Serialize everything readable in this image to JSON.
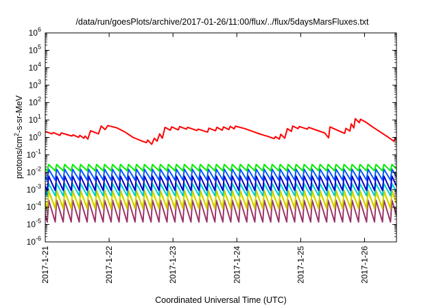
{
  "chart_data": {
    "type": "line",
    "title": "/data/run/goesPlots/archive/2017-01-26/11:00/flux/../flux/5daysMarsFluxes.txt",
    "xlabel": "Coordinated Universal Time (UTC)",
    "ylabel_parts": {
      "pre": "protons/cm",
      "sup": "2",
      "post": "-s-sr-MeV"
    },
    "y_scale": "log",
    "ylim_exp": [
      -6,
      6
    ],
    "ytick_exps": [
      "-6",
      "-5",
      "-4",
      "-3",
      "-2",
      "-1",
      "0",
      "1",
      "2",
      "3",
      "4",
      "5",
      "6"
    ],
    "ytick_base": "10",
    "x_unit": "day",
    "xlim": [
      "2017-01-21T00:00",
      "2017-01-26T12:00"
    ],
    "xticks": [
      "2017-1-21",
      "2017-1-22",
      "2017-1-23",
      "2017-1-24",
      "2017-1-25",
      "2017-1-26"
    ],
    "grid": false,
    "legend": "none",
    "main_series": {
      "color": "#ff0000",
      "points": [
        [
          "2017-01-21T00:00",
          2.2
        ],
        [
          "2017-01-21T02:30",
          1.6
        ],
        [
          "2017-01-21T03:00",
          1.9
        ],
        [
          "2017-01-21T05:30",
          1.3
        ],
        [
          "2017-01-21T06:00",
          1.8
        ],
        [
          "2017-01-21T10:00",
          1.2
        ],
        [
          "2017-01-21T10:30",
          1.4
        ],
        [
          "2017-01-21T12:30",
          1.0
        ],
        [
          "2017-01-21T13:00",
          1.3
        ],
        [
          "2017-01-21T14:30",
          0.9
        ],
        [
          "2017-01-21T15:00",
          1.2
        ],
        [
          "2017-01-21T16:00",
          0.8
        ],
        [
          "2017-01-21T17:00",
          2.4
        ],
        [
          "2017-01-21T20:00",
          1.6
        ],
        [
          "2017-01-21T21:00",
          4.5
        ],
        [
          "2017-01-21T22:30",
          2.8
        ],
        [
          "2017-01-21T23:30",
          4.8
        ],
        [
          "2017-01-22T03:00",
          3.5
        ],
        [
          "2017-01-22T06:00",
          2.0
        ],
        [
          "2017-01-22T09:00",
          1.0
        ],
        [
          "2017-01-22T12:00",
          0.65
        ],
        [
          "2017-01-22T14:00",
          0.5
        ],
        [
          "2017-01-22T14:30",
          0.7
        ],
        [
          "2017-01-22T16:00",
          0.4
        ],
        [
          "2017-01-22T17:00",
          0.9
        ],
        [
          "2017-01-22T18:00",
          0.6
        ],
        [
          "2017-01-22T19:00",
          1.6
        ],
        [
          "2017-01-22T20:00",
          0.9
        ],
        [
          "2017-01-22T21:00",
          3.8
        ],
        [
          "2017-01-22T23:00",
          2.6
        ],
        [
          "2017-01-22T23:30",
          4.0
        ],
        [
          "2017-01-23T02:00",
          2.7
        ],
        [
          "2017-01-23T02:30",
          4.2
        ],
        [
          "2017-01-23T05:00",
          3.0
        ],
        [
          "2017-01-23T05:30",
          3.8
        ],
        [
          "2017-01-23T09:00",
          2.5
        ],
        [
          "2017-01-23T09:30",
          3.0
        ],
        [
          "2017-01-23T13:00",
          2.0
        ],
        [
          "2017-01-23T13:30",
          3.4
        ],
        [
          "2017-01-23T16:00",
          2.4
        ],
        [
          "2017-01-23T16:30",
          3.8
        ],
        [
          "2017-01-23T18:30",
          2.6
        ],
        [
          "2017-01-23T19:00",
          4.0
        ],
        [
          "2017-01-23T21:00",
          2.8
        ],
        [
          "2017-01-23T21:30",
          4.3
        ],
        [
          "2017-01-23T23:00",
          3.1
        ],
        [
          "2017-01-23T23:30",
          4.4
        ],
        [
          "2017-01-24T03:00",
          3.2
        ],
        [
          "2017-01-24T06:00",
          2.2
        ],
        [
          "2017-01-24T09:00",
          1.5
        ],
        [
          "2017-01-24T12:00",
          1.1
        ],
        [
          "2017-01-24T14:00",
          0.85
        ],
        [
          "2017-01-24T14:30",
          1.1
        ],
        [
          "2017-01-24T16:00",
          0.8
        ],
        [
          "2017-01-24T16:30",
          1.5
        ],
        [
          "2017-01-24T18:00",
          0.9
        ],
        [
          "2017-01-24T19:00",
          3.2
        ],
        [
          "2017-01-24T20:30",
          2.2
        ],
        [
          "2017-01-24T21:00",
          4.5
        ],
        [
          "2017-01-24T23:00",
          3.2
        ],
        [
          "2017-01-24T23:30",
          4.2
        ],
        [
          "2017-01-25T02:30",
          3.0
        ],
        [
          "2017-01-25T03:00",
          3.8
        ],
        [
          "2017-01-25T06:00",
          2.6
        ],
        [
          "2017-01-25T09:00",
          1.8
        ],
        [
          "2017-01-25T10:30",
          0.95
        ],
        [
          "2017-01-25T11:00",
          4.0
        ],
        [
          "2017-01-25T14:00",
          2.5
        ],
        [
          "2017-01-25T16:30",
          1.7
        ],
        [
          "2017-01-25T17:00",
          3.3
        ],
        [
          "2017-01-25T18:30",
          2.3
        ],
        [
          "2017-01-25T19:00",
          6.0
        ],
        [
          "2017-01-25T20:00",
          3.5
        ],
        [
          "2017-01-25T20:30",
          12
        ],
        [
          "2017-01-25T22:00",
          7.0
        ],
        [
          "2017-01-25T22:30",
          11
        ],
        [
          "2017-01-26T00:30",
          7.5
        ],
        [
          "2017-01-26T03:00",
          4.0
        ],
        [
          "2017-01-26T06:00",
          2.0
        ],
        [
          "2017-01-26T09:00",
          1.0
        ],
        [
          "2017-01-26T11:00",
          0.6
        ],
        [
          "2017-01-26T11:30",
          0.9
        ],
        [
          "2017-01-26T12:00",
          0.8
        ]
      ]
    },
    "sawtooth_series": [
      {
        "color": "#00ee00",
        "period_hours": 3,
        "peak": 0.028,
        "trough": 0.012
      },
      {
        "color": "#0055ff",
        "period_hours": 3,
        "peak": 0.015,
        "trough": 0.0035
      },
      {
        "color": "#0000cc",
        "period_hours": 3,
        "peak": 0.006,
        "trough": 0.0009
      },
      {
        "color": "#00cccc",
        "period_hours": 3,
        "peak": 0.0022,
        "trough": 0.00045
      },
      {
        "color": "#cccc00",
        "period_hours": 3,
        "peak": 0.0009,
        "trough": 8e-05
      },
      {
        "color": "#ffff33",
        "period_hours": 3,
        "peak": 0.00055,
        "trough": 0.00012
      },
      {
        "color": "#993366",
        "period_hours": 3,
        "peak": 0.00025,
        "trough": 1.4e-05
      }
    ]
  }
}
